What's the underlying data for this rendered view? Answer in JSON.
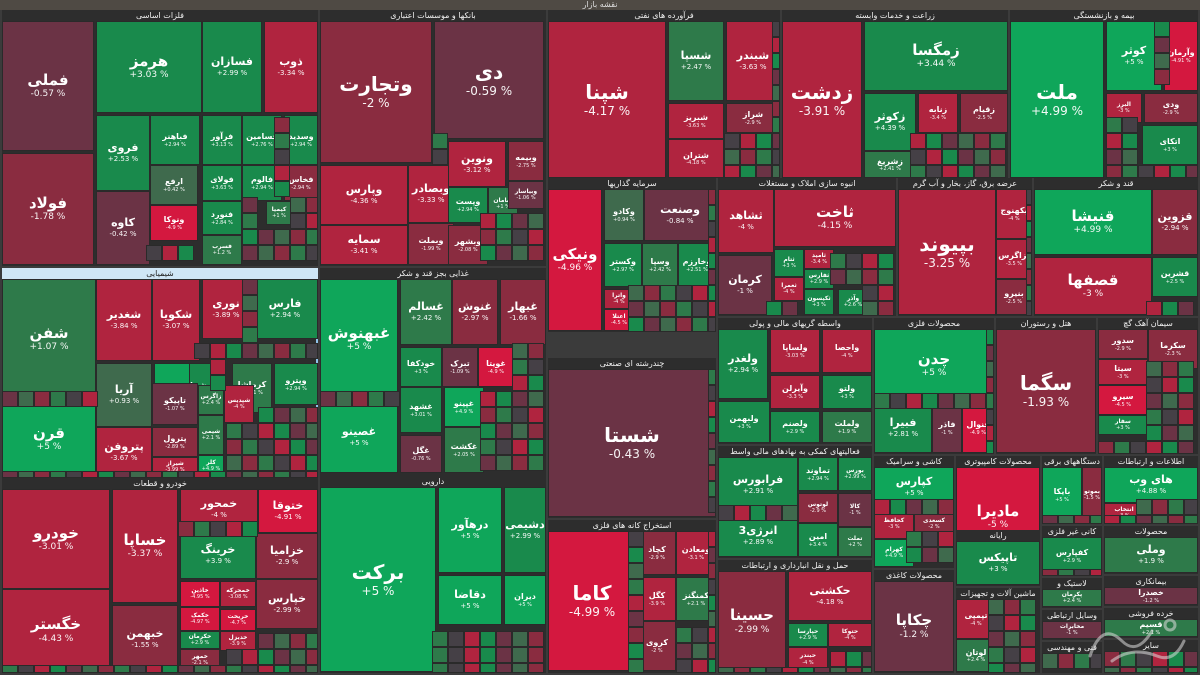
{
  "title": "نقشه بازار",
  "colors": {
    "pos5": "#0fa65a",
    "pos3": "#198a4c",
    "pos2": "#2e7a4a",
    "pos1": "#3f6a4d",
    "neutral": "#454046",
    "neg1": "#6b3345",
    "neg2": "#8a2c40",
    "neg3": "#b0243f",
    "neg5": "#d4183f"
  },
  "chart_data": {
    "type": "treemap",
    "title": "نقشه بازار",
    "value_unit": "%",
    "groups": [
      {
        "name": "فلزات اساسی",
        "items": [
          {
            "name": "فملی",
            "value": -0.57
          },
          {
            "name": "فولاد",
            "value": -1.78
          },
          {
            "name": "هرمز",
            "value": 3.03
          },
          {
            "name": "فسازان",
            "value": 2.99
          },
          {
            "name": "ذوب",
            "value": -3.34
          },
          {
            "name": "فروی",
            "value": 2.53
          },
          {
            "name": "فباهنر",
            "value": 2.94
          },
          {
            "name": "فرآور",
            "value": 3.13
          },
          {
            "name": "فسامین",
            "value": 2.76
          },
          {
            "name": "وسدید",
            "value": 2.94
          },
          {
            "name": "فخاس",
            "value": -2.94
          },
          {
            "name": "ارفع",
            "value": 0.42
          },
          {
            "name": "فولای",
            "value": 3.63
          },
          {
            "name": "فالوم",
            "value": 2.94
          },
          {
            "name": "کاوه",
            "value": -0.42
          },
          {
            "name": "فنورد",
            "value": 2.84
          },
          {
            "name": "کیمیا",
            "value": 1.0
          },
          {
            "name": "فسرب",
            "value": 1.2
          },
          {
            "name": "ونوکا",
            "value": -4.9
          }
        ]
      },
      {
        "name": "بانکها و موسسات اعتباری",
        "items": [
          {
            "name": "وتجارت",
            "value": -2
          },
          {
            "name": "دی",
            "value": -0.59
          },
          {
            "name": "وپارس",
            "value": -4.36
          },
          {
            "name": "وبصادر",
            "value": -3.33
          },
          {
            "name": "وبملت",
            "value": -1.99
          },
          {
            "name": "سمایه",
            "value": -3.41
          },
          {
            "name": "وبیمه",
            "value": -2.75
          },
          {
            "name": "ونوین",
            "value": -3.12
          },
          {
            "name": "وپست",
            "value": 2.94
          },
          {
            "name": "سامان",
            "value": 1.0
          },
          {
            "name": "وبشهر",
            "value": -2.08
          },
          {
            "name": "وبیاسار",
            "value": -1.06
          },
          {
            "name": "وزمین",
            "value": 2.95
          },
          {
            "name": "وکار",
            "value": -2.0
          }
        ]
      },
      {
        "name": "فرآورده های نفتی",
        "items": [
          {
            "name": "شپنا",
            "value": -4.17
          },
          {
            "name": "شبندر",
            "value": -3.63
          },
          {
            "name": "شسپا",
            "value": 2.47
          },
          {
            "name": "شبریز",
            "value": -3.63
          },
          {
            "name": "شتران",
            "value": -4.18
          },
          {
            "name": "شراز",
            "value": -2.9
          }
        ]
      },
      {
        "name": "زراعت و خدمات وابسته",
        "items": [
          {
            "name": "زدشت",
            "value": -3.91
          },
          {
            "name": "زمگسا",
            "value": 3.44
          },
          {
            "name": "زکوثر",
            "value": 4.39
          },
          {
            "name": "زشریغ",
            "value": 2.41
          },
          {
            "name": "زقیام",
            "value": -2.5
          },
          {
            "name": "زنابه",
            "value": -3.4
          }
        ]
      },
      {
        "name": "بیمه و بازنشستگی",
        "items": [
          {
            "name": "ملت",
            "value": 4.99
          },
          {
            "name": "کوثر",
            "value": 5.0
          },
          {
            "name": "وآرمان",
            "value": -4.91
          },
          {
            "name": "البرز",
            "value": -3.0
          },
          {
            "name": "ودی",
            "value": -2.9
          },
          {
            "name": "اتکای",
            "value": 3.0
          }
        ]
      },
      {
        "name": "شیمیایی",
        "items": [
          {
            "name": "شفن",
            "value": 1.07
          },
          {
            "name": "قرن",
            "value": 5.0
          },
          {
            "name": "شغدیر",
            "value": -3.84
          },
          {
            "name": "شکویا",
            "value": -3.07
          },
          {
            "name": "نوری",
            "value": -3.89
          },
          {
            "name": "فارس",
            "value": 2.94
          },
          {
            "name": "شخارک",
            "value": 3.04
          },
          {
            "name": "کرماشا",
            "value": 1.01
          },
          {
            "name": "شاروم",
            "value": 4.95
          },
          {
            "name": "وپترو",
            "value": 2.94
          },
          {
            "name": "آریا",
            "value": 0.93
          },
          {
            "name": "تاپیکو",
            "value": -1.07
          },
          {
            "name": "پتروفن",
            "value": -3.67
          },
          {
            "name": "پترول",
            "value": -2.89
          },
          {
            "name": "شیراز",
            "value": -3.99
          },
          {
            "name": "شیمی",
            "value": 2.1
          },
          {
            "name": "زاگرس",
            "value": 2.4
          },
          {
            "name": "کلر",
            "value": 4.9
          },
          {
            "name": "شپدیس",
            "value": -4.0
          }
        ]
      },
      {
        "name": "غذایی بجز قند و شکر",
        "items": [
          {
            "name": "غبهنوش",
            "value": 5.0
          },
          {
            "name": "غصینو",
            "value": 5.0
          },
          {
            "name": "غسالم",
            "value": 2.42
          },
          {
            "name": "غنوش",
            "value": -2.97
          },
          {
            "name": "غبهار",
            "value": -1.66
          },
          {
            "name": "خودکفا",
            "value": 3.0
          },
          {
            "name": "تبرک",
            "value": -1.09
          },
          {
            "name": "غویتا",
            "value": -4.9
          },
          {
            "name": "غشهد",
            "value": 3.01
          },
          {
            "name": "غگل",
            "value": -0.76
          },
          {
            "name": "غپینو",
            "value": 4.9
          },
          {
            "name": "غکشت",
            "value": 2.05
          }
        ]
      },
      {
        "name": "سرمایه گذاریها",
        "items": [
          {
            "name": "ونیکی",
            "value": -4.96
          },
          {
            "name": "وکادو",
            "value": 0.94
          },
          {
            "name": "وصنعت",
            "value": -0.84
          },
          {
            "name": "وکستر",
            "value": 2.97
          },
          {
            "name": "وسپا",
            "value": 2.42
          },
          {
            "name": "وخارزم",
            "value": 2.51
          },
          {
            "name": "واترا",
            "value": -4.0
          },
          {
            "name": "اعتلا",
            "value": -4.5
          },
          {
            "name": "وسبهر",
            "value": -2.9
          }
        ]
      },
      {
        "name": "انبوه سازی املاک و مستغلات",
        "items": [
          {
            "name": "ثشاهد",
            "value": -4.0
          },
          {
            "name": "ثاخت",
            "value": -4.15
          },
          {
            "name": "ثتام",
            "value": 3.0
          },
          {
            "name": "ثامید",
            "value": -3.4
          },
          {
            "name": "ثعمرا",
            "value": -4.0
          },
          {
            "name": "ثفارس",
            "value": 2.9
          },
          {
            "name": "کرمان",
            "value": -1.0
          },
          {
            "name": "ثکیسون",
            "value": 3.0
          },
          {
            "name": "وآذر",
            "value": 2.6
          }
        ]
      },
      {
        "name": "عرضه برق، گاز، بخار و آب گرم",
        "items": [
          {
            "name": "بپیوند",
            "value": -3.25
          },
          {
            "name": "بکهنوج",
            "value": -4.0
          },
          {
            "name": "بزاگرس",
            "value": -3.5
          },
          {
            "name": "بنیرو",
            "value": -2.5
          }
        ]
      },
      {
        "name": "قند و شکر",
        "items": [
          {
            "name": "قنیشا",
            "value": 4.99
          },
          {
            "name": "قزوین",
            "value": -2.94
          },
          {
            "name": "قصفها",
            "value": -3.0
          },
          {
            "name": "قشرین",
            "value": 2.5
          }
        ]
      },
      {
        "name": "محصولات فلزی",
        "items": [
          {
            "name": "چدن",
            "value": 5.0
          },
          {
            "name": "فبیرا",
            "value": 2.81
          },
          {
            "name": "فاذر",
            "value": -1.0
          },
          {
            "name": "فنوال",
            "value": -4.9
          }
        ]
      },
      {
        "name": "هتل و رستوران",
        "items": [
          {
            "name": "سگما",
            "value": -1.93
          }
        ]
      },
      {
        "name": "سیمان آهک گچ",
        "items": [
          {
            "name": "سدور",
            "value": -2.9
          },
          {
            "name": "سیتا",
            "value": -3.0
          },
          {
            "name": "سیرو",
            "value": -4.5
          },
          {
            "name": "سفار",
            "value": 3.0
          },
          {
            "name": "سکرما",
            "value": -2.3
          }
        ]
      },
      {
        "name": "واسطه گریهای مالی و پولی",
        "items": [
          {
            "name": "ولغدر",
            "value": 2.94
          },
          {
            "name": "ولساپا",
            "value": -3.03
          },
          {
            "name": "واحصا",
            "value": -4.0
          },
          {
            "name": "وآیرلن",
            "value": -3.3
          },
          {
            "name": "ولتو",
            "value": 3.0
          },
          {
            "name": "ولبهمن",
            "value": 3.0
          },
          {
            "name": "ولصنم",
            "value": 2.9
          },
          {
            "name": "ولملت",
            "value": 1.9
          }
        ]
      },
      {
        "name": "چندرشته ای صنعتی",
        "items": [
          {
            "name": "شستا",
            "value": -0.43
          }
        ]
      },
      {
        "name": "فعالیتهای کمکی به نهادهای مالی واسط",
        "items": [
          {
            "name": "فرابورس",
            "value": 2.91
          },
          {
            "name": "تماوند",
            "value": 2.94
          },
          {
            "name": "بورس",
            "value": 2.99
          },
          {
            "name": "انرژی3",
            "value": 2.89
          },
          {
            "name": "کالا",
            "value": -1.0
          },
          {
            "name": "لوتوس",
            "value": -2.9
          },
          {
            "name": "امین",
            "value": 3.4
          },
          {
            "name": "تملت",
            "value": 2.0
          }
        ]
      },
      {
        "name": "کاشی و سرامیک",
        "items": [
          {
            "name": "کپارس",
            "value": 5.0
          },
          {
            "name": "کحافظ",
            "value": -3.0
          },
          {
            "name": "کهرام",
            "value": 4.9
          },
          {
            "name": "کسعدی",
            "value": -2.0
          }
        ]
      },
      {
        "name": "محصولات کامپیوتری",
        "items": [
          {
            "name": "مادیرا",
            "value": -5
          }
        ]
      },
      {
        "name": "دستگاههای برقی",
        "items": [
          {
            "name": "بایکا",
            "value": 5.0
          },
          {
            "name": "بموتو",
            "value": -1.5
          }
        ]
      },
      {
        "name": "اطلاعات و ارتباطات",
        "items": [
          {
            "name": "های وب",
            "value": 4.88
          },
          {
            "name": "انتخاب",
            "value": -3.0
          }
        ]
      },
      {
        "name": "خودرو و قطعات",
        "items": [
          {
            "name": "خودرو",
            "value": -3.01
          },
          {
            "name": "خگستر",
            "value": -4.43
          },
          {
            "name": "خساپا",
            "value": -3.37
          },
          {
            "name": "خبهمن",
            "value": -1.55
          },
          {
            "name": "خمحور",
            "value": -4.0
          },
          {
            "name": "ختوقا",
            "value": -4.91
          },
          {
            "name": "خرینگ",
            "value": 3.9
          },
          {
            "name": "خزامیا",
            "value": -2.9
          },
          {
            "name": "خپارس",
            "value": -2.99
          },
          {
            "name": "خاذین",
            "value": -4.95
          },
          {
            "name": "خمحرکه",
            "value": -3.08
          },
          {
            "name": "خکمک",
            "value": -4.97
          },
          {
            "name": "خریخت",
            "value": -4.7
          },
          {
            "name": "خکرمان",
            "value": 2.9
          },
          {
            "name": "خدیزل",
            "value": -3.9
          },
          {
            "name": "خمهر",
            "value": -2.1
          }
        ]
      },
      {
        "name": "دارویی",
        "items": [
          {
            "name": "برکت",
            "value": 5
          },
          {
            "name": "درهآور",
            "value": 5.0
          },
          {
            "name": "دشیمی",
            "value": 2.99
          },
          {
            "name": "دقاضا",
            "value": 5.0
          },
          {
            "name": "دیران",
            "value": 5.0
          }
        ]
      },
      {
        "name": "استخراج کانه های فلزی",
        "items": [
          {
            "name": "کاما",
            "value": -4.99
          },
          {
            "name": "کچاد",
            "value": -2.9
          },
          {
            "name": "ومعادن",
            "value": -3.1
          },
          {
            "name": "کگل",
            "value": -3.9
          },
          {
            "name": "کمنگنز",
            "value": 2.1
          },
          {
            "name": "کروی",
            "value": -2.0
          }
        ]
      },
      {
        "name": "حمل و نقل انبارداری و ارتباطات",
        "items": [
          {
            "name": "حسینا",
            "value": -2.99
          },
          {
            "name": "حکشتی",
            "value": -4.18
          },
          {
            "name": "حپارسا",
            "value": 2.9
          },
          {
            "name": "حتوکا",
            "value": -4.0
          },
          {
            "name": "حبندر",
            "value": -4.0
          }
        ]
      },
      {
        "name": "رایانه",
        "items": [
          {
            "name": "تاپیکس",
            "value": 3.0
          },
          {
            "name": "مداران",
            "value": 2.5
          }
        ]
      },
      {
        "name": "محصولات کاغذی",
        "items": [
          {
            "name": "چکاپا",
            "value": -1.2
          }
        ]
      },
      {
        "name": "ماشین آلات و تجهیزات",
        "items": [
          {
            "name": "تپمپی",
            "value": -4.0
          },
          {
            "name": "لوتان",
            "value": 2.4
          }
        ]
      },
      {
        "name": "کانی غیر فلزی",
        "items": [
          {
            "name": "کفپارس",
            "value": 2.9
          }
        ]
      },
      {
        "name": "محصولات",
        "items": [
          {
            "name": "وملی",
            "value": 1.9
          }
        ]
      },
      {
        "name": "بیمانکاری",
        "items": [
          {
            "name": "خصدرا",
            "value": -1.2
          }
        ]
      },
      {
        "name": "لاستیک و",
        "items": [
          {
            "name": "پکرمان",
            "value": 2.4
          }
        ]
      },
      {
        "name": "خرده فروشی",
        "items": [
          {
            "name": "قسیم",
            "value": 2.1
          }
        ]
      },
      {
        "name": "وسایل ارتباطی",
        "items": [
          {
            "name": "مخابرات",
            "value": -1.0
          }
        ]
      },
      {
        "name": "فنی و مهندسی",
        "items": []
      },
      {
        "name": "سایر",
        "items": []
      }
    ]
  }
}
